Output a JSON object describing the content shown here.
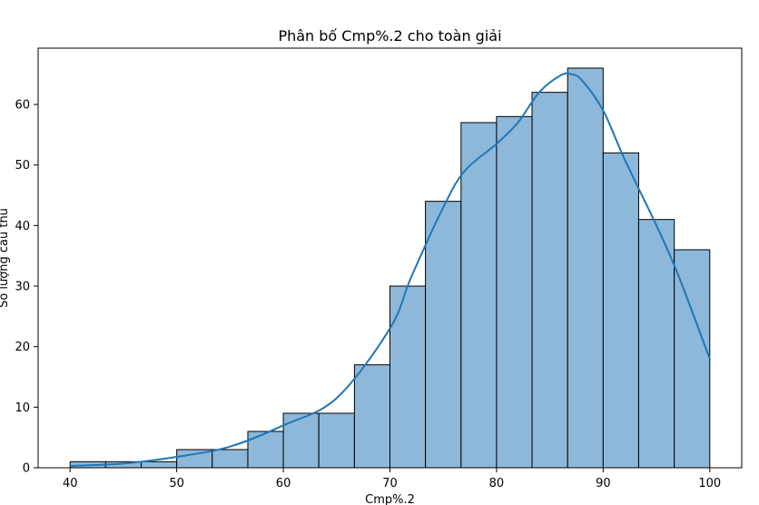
{
  "chart_data": {
    "type": "bar",
    "title": "Phân bố Cmp%.2 cho toàn giải",
    "xlabel": "Cmp%.2",
    "ylabel": "Số lượng cầu thủ",
    "xlim": [
      37,
      103
    ],
    "ylim": [
      0,
      69.3
    ],
    "xticks": [
      40,
      50,
      60,
      70,
      80,
      90,
      100
    ],
    "yticks": [
      0,
      10,
      20,
      30,
      40,
      50,
      60
    ],
    "bins": {
      "start": 40,
      "end": 100,
      "edges": [
        40.0,
        43.33,
        46.67,
        50.0,
        53.33,
        56.67,
        60.0,
        63.33,
        66.67,
        70.0,
        73.33,
        76.67,
        80.0,
        83.33,
        86.67,
        90.0,
        93.33,
        96.67,
        100.0
      ],
      "counts": [
        1,
        1,
        1,
        3,
        3,
        6,
        9,
        9,
        17,
        30,
        44,
        57,
        58,
        62,
        66,
        52,
        41,
        36
      ]
    },
    "kde": {
      "name": "KDE",
      "x": [
        40,
        45,
        50,
        55,
        60,
        65,
        70,
        72,
        75,
        77,
        80,
        82,
        84,
        86,
        87,
        88,
        90,
        92,
        95,
        97,
        100
      ],
      "y": [
        0.3,
        0.7,
        1.8,
        3.5,
        7.0,
        11.5,
        23.0,
        31.5,
        43.0,
        49.0,
        53.5,
        57.0,
        62.0,
        64.8,
        65.0,
        64.0,
        59.0,
        51.0,
        40.0,
        32.0,
        18.0
      ]
    },
    "grid": false,
    "colors": {
      "bar_fill": "#8db8da",
      "bar_edge": "#000000",
      "kde_line": "#1f77b4"
    }
  }
}
